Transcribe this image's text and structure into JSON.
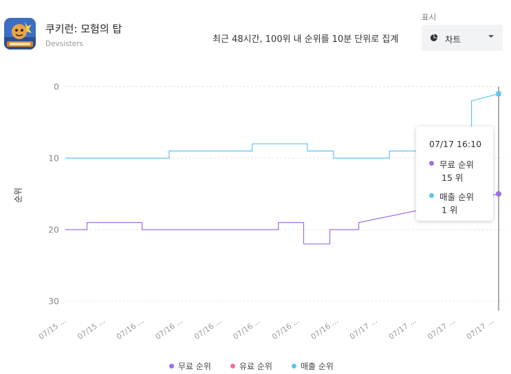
{
  "app": {
    "title": "쿠키런: 모험의 탑",
    "developer": "Devsisters"
  },
  "header": {
    "description": "최근 48시간, 100위 내 순위를 10분 단위로 집계",
    "display_label": "표시",
    "display_select": "차트"
  },
  "colors": {
    "free": "#9c6ee8",
    "paid": "#ef6fa5",
    "revenue": "#5bc4ee"
  },
  "tooltip": {
    "time": "07/17 16:10",
    "items": [
      {
        "label": "무료 순위",
        "value": "15 위",
        "color": "#9c6ee8"
      },
      {
        "label": "매출 순위",
        "value": "1 위",
        "color": "#5bc4ee"
      }
    ]
  },
  "legend": [
    {
      "label": "무료 순위",
      "color": "#9c6ee8"
    },
    {
      "label": "유료 순위",
      "color": "#ef6fa5"
    },
    {
      "label": "매출 순위",
      "color": "#5bc4ee"
    }
  ],
  "chart_data": {
    "type": "line",
    "ylabel": "순위",
    "y_reversed": true,
    "ylim": [
      0,
      30
    ],
    "yticks": [
      0,
      10,
      20,
      30
    ],
    "xlim": [
      0,
      48
    ],
    "x_tick_labels": [
      "07/15 ...",
      "07/15 ...",
      "07/16 ...",
      "07/16 ...",
      "07/16 ...",
      "07/16 ...",
      "07/16 ...",
      "07/16 ...",
      "07/17 ...",
      "07/17 ...",
      "07/17 ...",
      "07/17 ..."
    ],
    "grid": true,
    "legend_position": "bottom",
    "series": [
      {
        "name": "무료 순위",
        "color": "#9c6ee8",
        "points": [
          [
            0,
            20
          ],
          [
            2.4,
            20
          ],
          [
            2.4,
            19
          ],
          [
            8.5,
            19
          ],
          [
            8.5,
            20
          ],
          [
            23.6,
            20
          ],
          [
            23.6,
            19
          ],
          [
            26.4,
            19
          ],
          [
            26.4,
            22
          ],
          [
            29.3,
            22
          ],
          [
            29.3,
            20
          ],
          [
            32.5,
            20
          ],
          [
            32.5,
            19
          ],
          [
            48,
            15
          ]
        ]
      },
      {
        "name": "매출 순위",
        "color": "#5bc4ee",
        "points": [
          [
            0,
            10
          ],
          [
            11.5,
            10
          ],
          [
            11.5,
            9
          ],
          [
            20.7,
            9
          ],
          [
            20.7,
            8
          ],
          [
            26.8,
            8
          ],
          [
            26.8,
            9
          ],
          [
            29.7,
            9
          ],
          [
            29.7,
            10
          ],
          [
            35.9,
            10
          ],
          [
            35.9,
            9
          ],
          [
            45,
            9
          ],
          [
            45,
            2
          ],
          [
            48,
            1
          ]
        ]
      }
    ]
  }
}
